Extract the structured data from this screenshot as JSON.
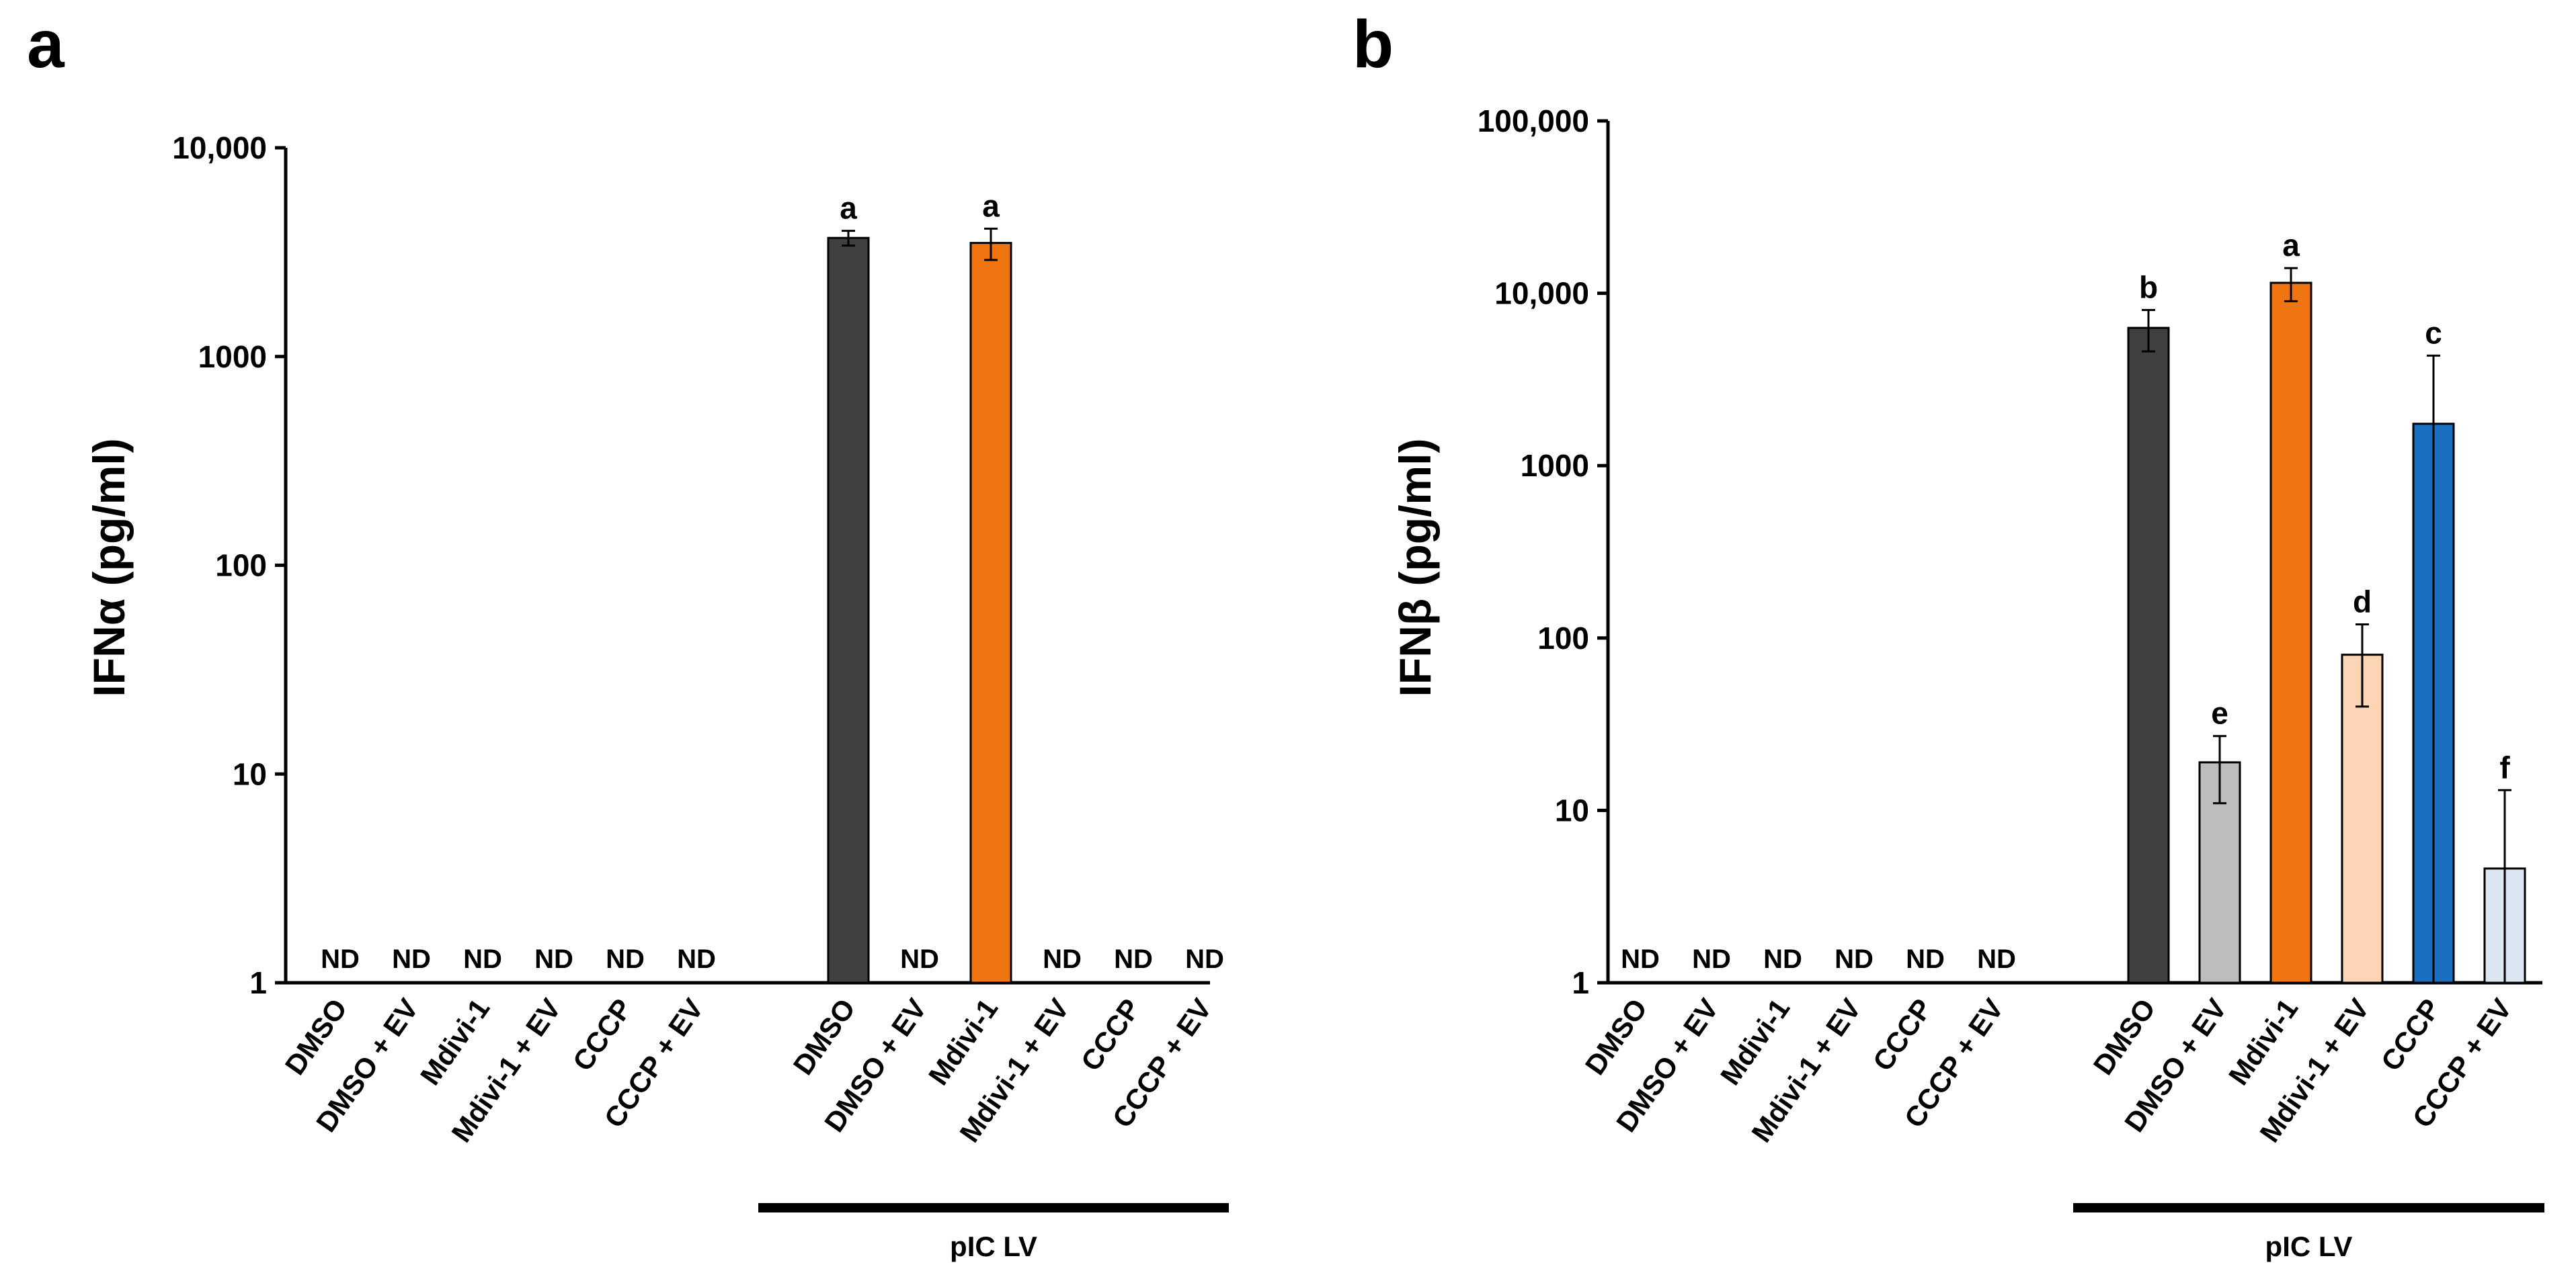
{
  "chart_data": [
    {
      "panel": "a",
      "type": "bar",
      "yscale": "log",
      "ylabel": "IFNα (pg/ml)",
      "ylim": [
        1,
        10000
      ],
      "yticks": [
        1,
        10,
        100,
        1000,
        10000
      ],
      "ytick_labels": [
        "1",
        "10",
        "100",
        "1000",
        "10,000"
      ],
      "categories": [
        "DMSO",
        "DMSO + EV",
        "Mdivi-1",
        "Mdivi-1 + EV",
        "CCCP",
        "CCCP + EV",
        "DMSO",
        "DMSO + EV",
        "Mdivi-1",
        "Mdivi-1 + EV",
        "CCCP",
        "CCCP + EV"
      ],
      "values": [
        null,
        null,
        null,
        null,
        null,
        null,
        3700,
        null,
        3500,
        null,
        null,
        null
      ],
      "error": [
        null,
        null,
        null,
        null,
        null,
        null,
        300,
        null,
        600,
        null,
        null,
        null
      ],
      "labels": [
        "ND",
        "ND",
        "ND",
        "ND",
        "ND",
        "ND",
        "a",
        "ND",
        "a",
        "ND",
        "ND",
        "ND"
      ],
      "colors": [
        "",
        "",
        "",
        "",
        "",
        "",
        "#404040",
        "",
        "#f07410",
        "",
        "",
        ""
      ],
      "group_label": "pIC LV"
    },
    {
      "panel": "b",
      "type": "bar",
      "yscale": "log",
      "ylabel": "IFNβ (pg/ml)",
      "ylim": [
        1,
        100000
      ],
      "yticks": [
        1,
        10,
        100,
        1000,
        10000,
        100000
      ],
      "ytick_labels": [
        "1",
        "10",
        "100",
        "1000",
        "10,000",
        "100,000"
      ],
      "categories": [
        "DMSO",
        "DMSO + EV",
        "Mdivi-1",
        "Mdivi-1 + EV",
        "CCCP",
        "CCCP + EV",
        "DMSO",
        "DMSO + EV",
        "Mdivi-1",
        "Mdivi-1 + EV",
        "CCCP",
        "CCCP + EV"
      ],
      "values": [
        null,
        null,
        null,
        null,
        null,
        null,
        6300,
        19,
        11500,
        80,
        1750,
        4.6
      ],
      "error": [
        null,
        null,
        null,
        null,
        null,
        null,
        1700,
        8,
        2500,
        40,
        2600,
        8.5
      ],
      "labels": [
        "ND",
        "ND",
        "ND",
        "ND",
        "ND",
        "ND",
        "b",
        "e",
        "a",
        "d",
        "c",
        "f"
      ],
      "colors": [
        "",
        "",
        "",
        "",
        "",
        "",
        "#404040",
        "#bdbdbd",
        "#f07410",
        "#fcd5b5",
        "#1a6fc0",
        "#dce6f2"
      ],
      "group_label": "pIC LV"
    }
  ]
}
